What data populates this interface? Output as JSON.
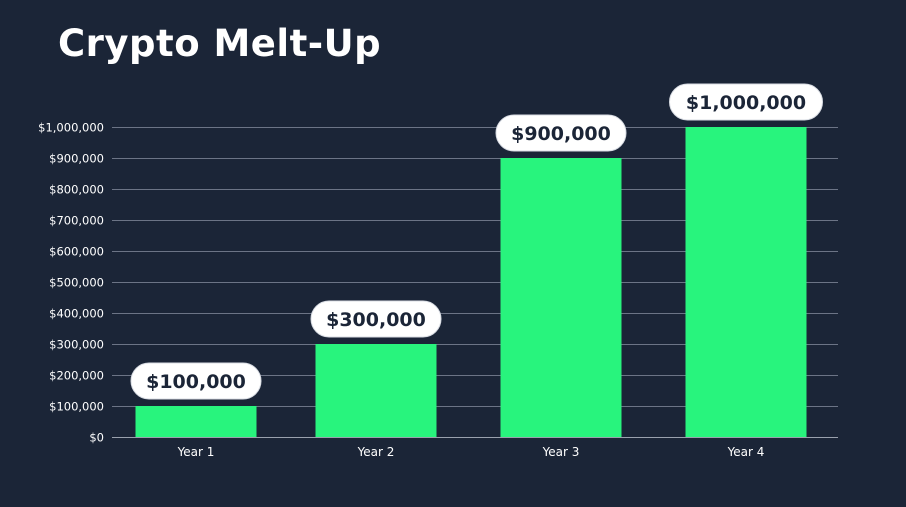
{
  "chart_data": {
    "type": "bar",
    "title": "Crypto Melt-Up",
    "categories": [
      "Year 1",
      "Year 2",
      "Year 3",
      "Year 4"
    ],
    "values": [
      100000,
      300000,
      900000,
      1000000
    ],
    "data_labels": [
      "$100,000",
      "$300,000",
      "$900,000",
      "$1,000,000"
    ],
    "y_ticks": [
      0,
      100000,
      200000,
      300000,
      400000,
      500000,
      600000,
      700000,
      800000,
      900000,
      1000000
    ],
    "y_tick_labels": [
      "$0",
      "$100,000",
      "$200,000",
      "$300,000",
      "$400,000",
      "$500,000",
      "$600,000",
      "$700,000",
      "$800,000",
      "$900,000",
      "$1,000,000"
    ],
    "xlabel": "",
    "ylabel": "",
    "ylim": [
      0,
      1000000
    ],
    "grid": true,
    "legend": "none",
    "colors": {
      "background": "#1b2537",
      "bar": "#28f47d",
      "grid": "#6c7486",
      "text": "#ffffff",
      "label_pill": "#ffffff",
      "label_text": "#1b2537"
    }
  }
}
